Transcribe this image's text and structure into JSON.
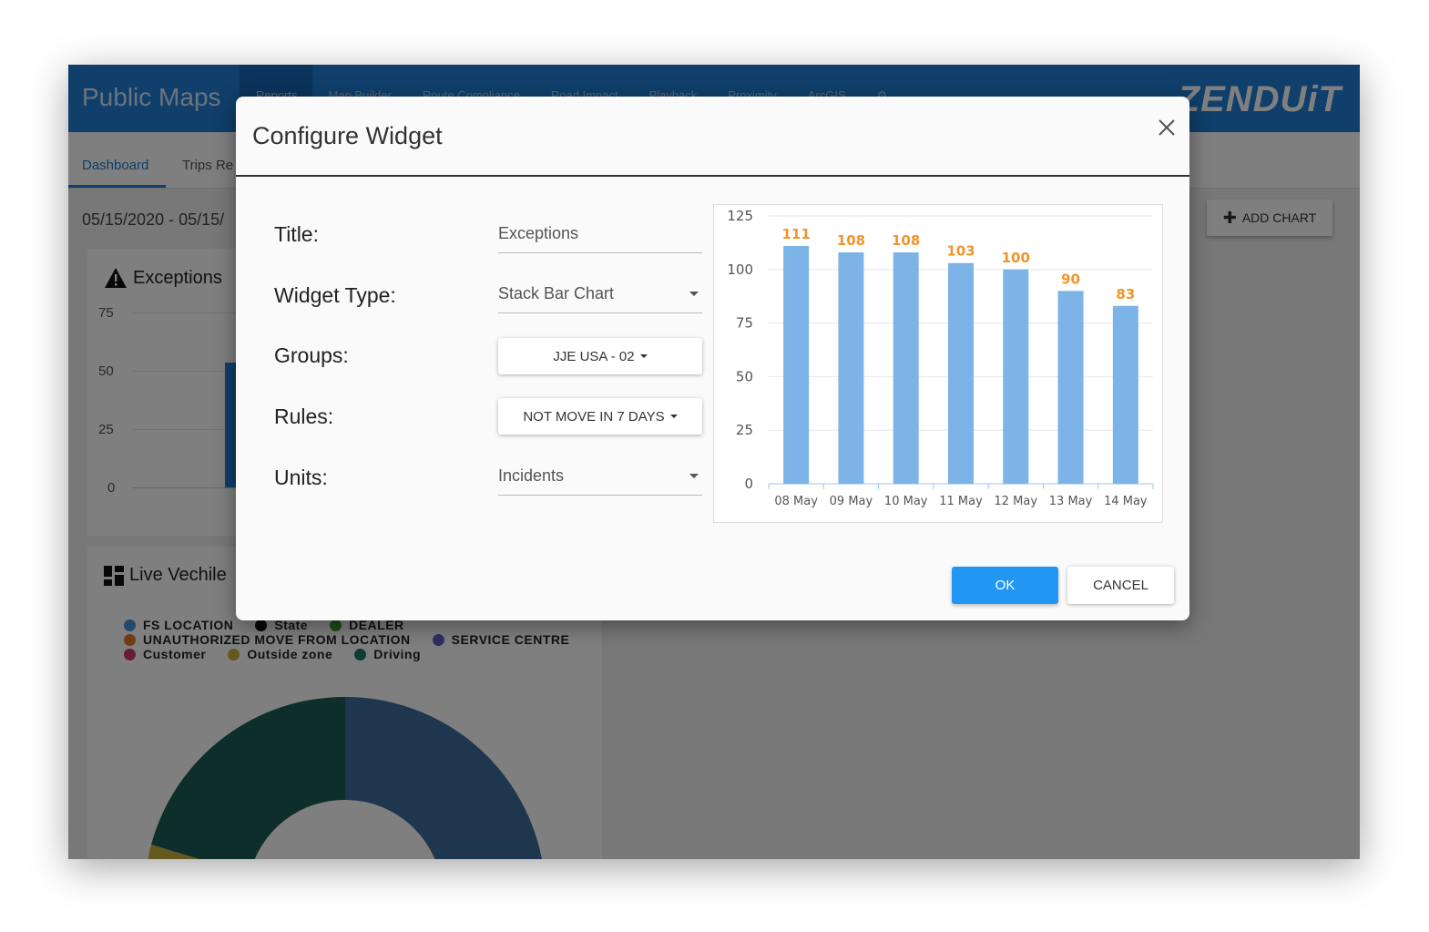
{
  "app": {
    "title": "Public Maps",
    "brand": "ZENDUiT",
    "nav": [
      "Reports",
      "Map Builder",
      "Route Compliance",
      "Road Impact",
      "Playback",
      "Proximity",
      "ArcGIS"
    ]
  },
  "subnav": {
    "tabs": [
      "Dashboard",
      "Trips Re"
    ]
  },
  "dashboard": {
    "date_range": "05/15/2020 - 05/15/",
    "add_chart_label": "ADD CHART",
    "exceptions_card": {
      "title": "Exceptions",
      "y_ticks": [
        "75",
        "50",
        "25",
        "0"
      ]
    },
    "live_card": {
      "title": "Live Vechile",
      "legend": [
        {
          "label": "FS LOCATION",
          "color": "#4a90d9"
        },
        {
          "label": "State",
          "color": "#111111"
        },
        {
          "label": "DEALER",
          "color": "#3a9a3a"
        },
        {
          "label": "UNAUTHORIZED MOVE FROM LOCATION",
          "color": "#e07b22"
        },
        {
          "label": "SERVICE CENTRE",
          "color": "#5b5fc7"
        },
        {
          "label": "Customer",
          "color": "#d33a6a"
        },
        {
          "label": "Outside zone",
          "color": "#c8b13a"
        },
        {
          "label": "Driving",
          "color": "#1a7a6e"
        }
      ]
    }
  },
  "modal": {
    "title": "Configure Widget",
    "fields": {
      "title_label": "Title:",
      "title_value": "Exceptions",
      "widget_type_label": "Widget Type:",
      "widget_type_value": "Stack Bar Chart",
      "groups_label": "Groups:",
      "groups_value": "JJE USA - 02",
      "rules_label": "Rules:",
      "rules_value": "NOT MOVE IN 7 DAYS",
      "units_label": "Units:",
      "units_value": "Incidents"
    },
    "ok_label": "OK",
    "cancel_label": "CANCEL"
  },
  "chart_data": {
    "type": "bar",
    "categories": [
      "08 May",
      "09 May",
      "10 May",
      "11 May",
      "12 May",
      "13 May",
      "14 May"
    ],
    "values": [
      111,
      108,
      108,
      103,
      100,
      90,
      83
    ],
    "ylim": [
      0,
      125
    ],
    "y_ticks": [
      0,
      25,
      50,
      75,
      100,
      125
    ],
    "bar_color": "#7cb4e8",
    "label_color": "#f0952a",
    "grid": true
  }
}
